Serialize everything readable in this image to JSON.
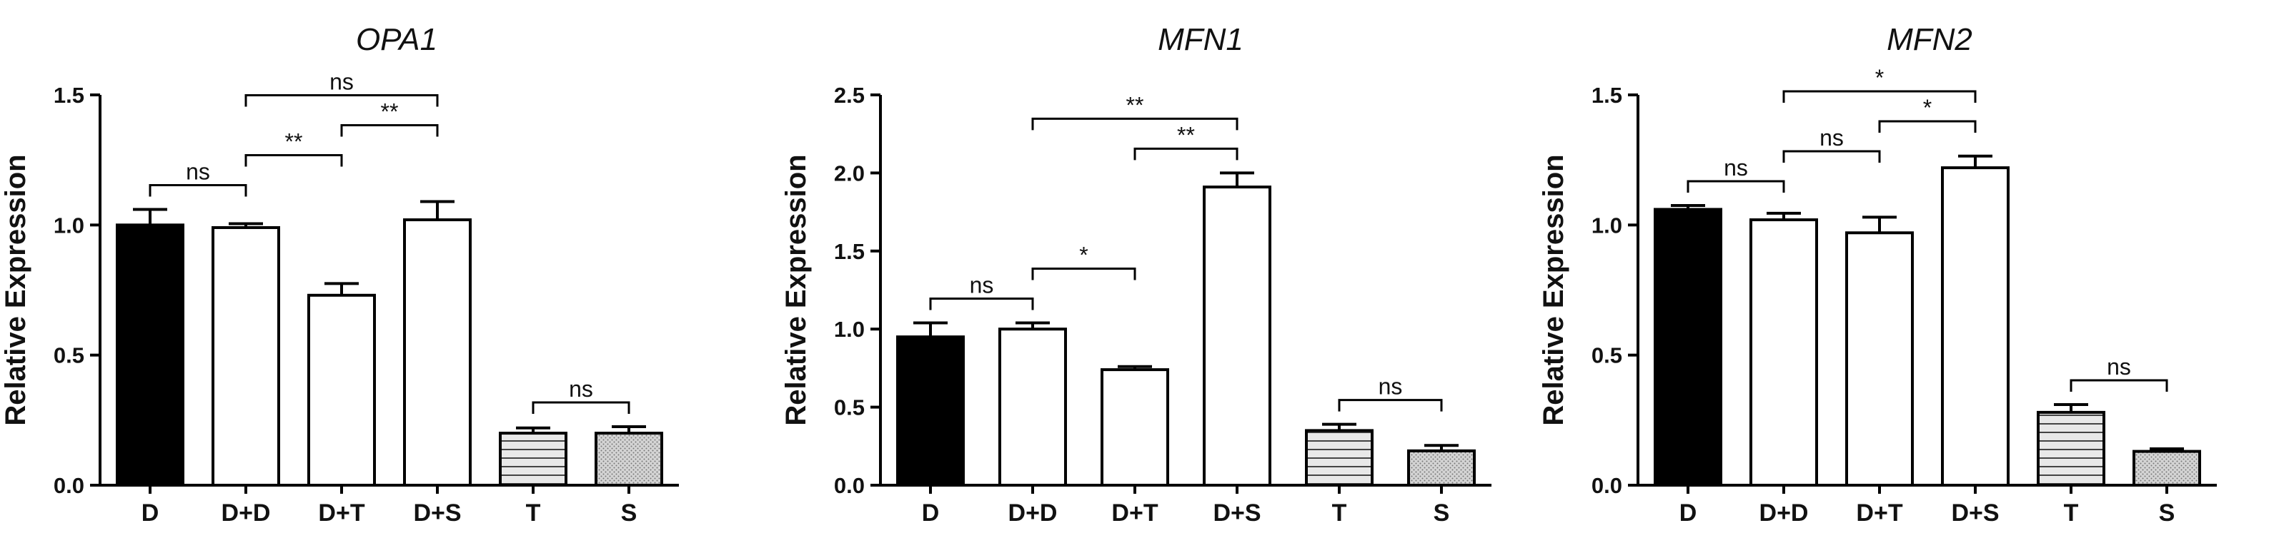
{
  "chart_data": [
    {
      "type": "bar",
      "title": "OPA1",
      "ylabel": "Relative Expression",
      "xlabel": "",
      "ylim": [
        0,
        1.5
      ],
      "yticks": [
        "0.0",
        "0.5",
        "1.0",
        "1.5"
      ],
      "categories": [
        "D",
        "D+D",
        "D+T",
        "D+S",
        "T",
        "S"
      ],
      "values": [
        1.0,
        0.99,
        0.73,
        1.02,
        0.2,
        0.2
      ],
      "errors": [
        0.06,
        0.015,
        0.045,
        0.07,
        0.02,
        0.025
      ],
      "fills": [
        "solid-black",
        "white",
        "white",
        "white",
        "horizontal-stripes",
        "stippled-grey"
      ],
      "significance": [
        {
          "from": "D",
          "to": "D+D",
          "label": "ns"
        },
        {
          "from": "D+D",
          "to": "D+T",
          "label": "**"
        },
        {
          "from": "D+T",
          "to": "D+S",
          "label": "**"
        },
        {
          "from": "D+D",
          "to": "D+S",
          "label": "ns"
        },
        {
          "from": "T",
          "to": "S",
          "label": "ns"
        }
      ]
    },
    {
      "type": "bar",
      "title": "MFN1",
      "ylabel": "Relative Expression",
      "xlabel": "",
      "ylim": [
        0,
        2.5
      ],
      "yticks": [
        "0.0",
        "0.5",
        "1.0",
        "1.5",
        "2.0",
        "2.5"
      ],
      "categories": [
        "D",
        "D+D",
        "D+T",
        "D+S",
        "T",
        "S"
      ],
      "values": [
        0.95,
        1.0,
        0.74,
        1.91,
        0.35,
        0.22
      ],
      "errors": [
        0.09,
        0.04,
        0.02,
        0.09,
        0.04,
        0.035
      ],
      "fills": [
        "solid-black",
        "white",
        "white",
        "white",
        "horizontal-stripes",
        "stippled-grey"
      ],
      "significance": [
        {
          "from": "D",
          "to": "D+D",
          "label": "ns"
        },
        {
          "from": "D+D",
          "to": "D+T",
          "label": "*"
        },
        {
          "from": "D+T",
          "to": "D+S",
          "label": "**"
        },
        {
          "from": "D+D",
          "to": "D+S",
          "label": "**"
        },
        {
          "from": "T",
          "to": "S",
          "label": "ns"
        }
      ]
    },
    {
      "type": "bar",
      "title": "MFN2",
      "ylabel": "Relative Expression",
      "xlabel": "",
      "ylim": [
        0,
        1.5
      ],
      "yticks": [
        "0.0",
        "0.5",
        "1.0",
        "1.5"
      ],
      "categories": [
        "D",
        "D+D",
        "D+T",
        "D+S",
        "T",
        "S"
      ],
      "values": [
        1.06,
        1.02,
        0.97,
        1.22,
        0.28,
        0.13
      ],
      "errors": [
        0.015,
        0.025,
        0.06,
        0.045,
        0.03,
        0.01
      ],
      "fills": [
        "solid-black",
        "white",
        "white",
        "white",
        "horizontal-stripes",
        "stippled-grey"
      ],
      "significance": [
        {
          "from": "D",
          "to": "D+D",
          "label": "ns"
        },
        {
          "from": "D+D",
          "to": "D+T",
          "label": "ns"
        },
        {
          "from": "D+T",
          "to": "D+S",
          "label": "*"
        },
        {
          "from": "D+D",
          "to": "D+S",
          "label": "*"
        },
        {
          "from": "T",
          "to": "S",
          "label": "ns"
        }
      ]
    }
  ]
}
